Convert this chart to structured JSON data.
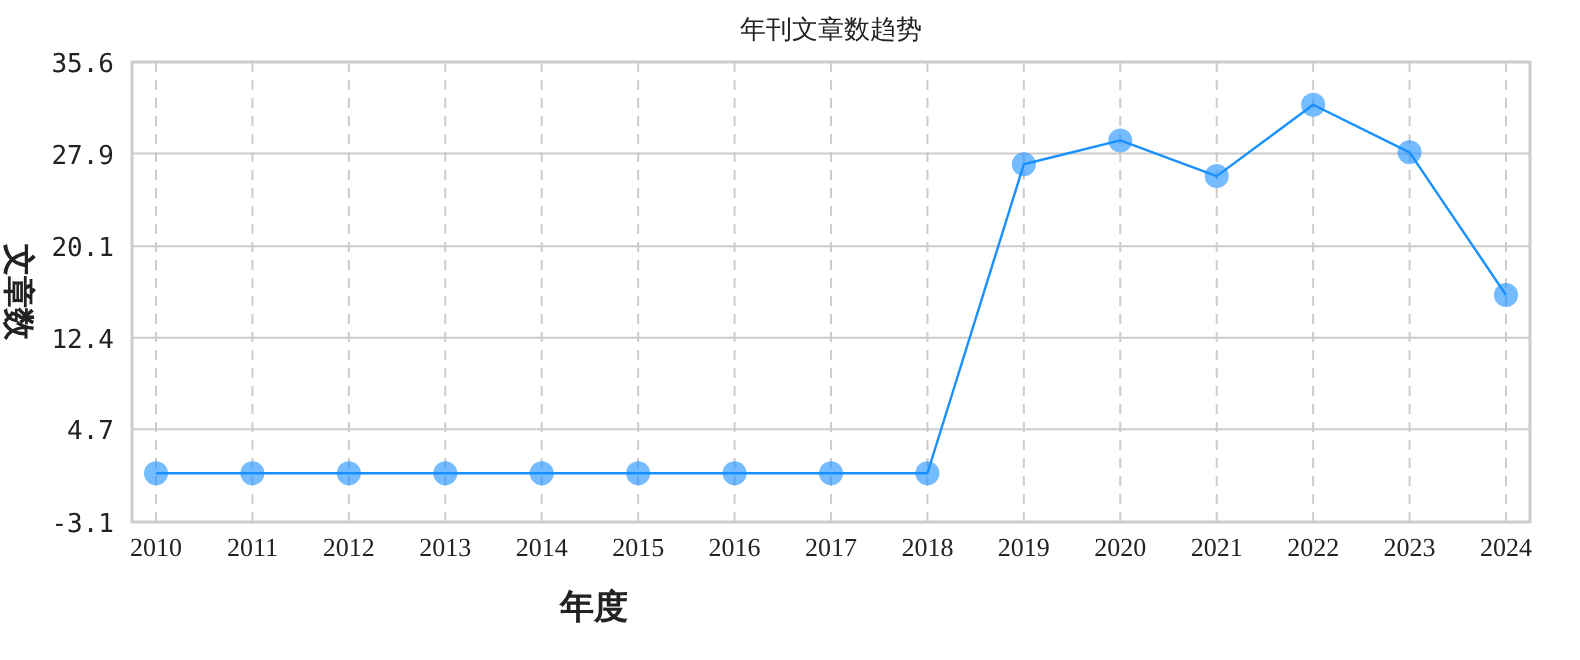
{
  "chart_data": {
    "type": "line",
    "title": "年刊文章数趋势",
    "xlabel": "年度",
    "ylabel": "文章数",
    "categories": [
      "2010",
      "2011",
      "2012",
      "2013",
      "2014",
      "2015",
      "2016",
      "2017",
      "2018",
      "2019",
      "2020",
      "2021",
      "2022",
      "2023",
      "2024"
    ],
    "series": [
      {
        "color": "#1890ff",
        "values": [
          1,
          1,
          1,
          1,
          1,
          1,
          1,
          1,
          1,
          27,
          29,
          26,
          32,
          28,
          16
        ]
      }
    ],
    "ylim": [
      -3.1,
      35.6
    ],
    "yticks": [
      -3.1,
      4.7,
      12.4,
      20.1,
      27.9,
      35.6
    ],
    "grid": true,
    "marker": "circle",
    "line_style": "solid"
  }
}
